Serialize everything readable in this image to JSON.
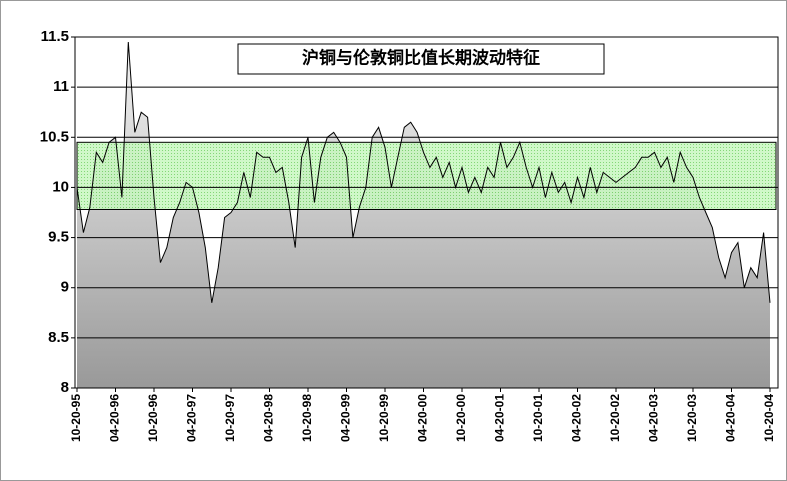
{
  "chart_data": {
    "type": "area",
    "title": "沪铜与伦敦铜比值长期波动特征",
    "categories": [
      "10-20-95",
      null,
      null,
      null,
      null,
      null,
      "04-20-96",
      null,
      null,
      null,
      null,
      null,
      "10-20-96",
      null,
      null,
      null,
      null,
      null,
      "04-20-97",
      null,
      null,
      null,
      null,
      null,
      "10-20-97",
      null,
      null,
      null,
      null,
      null,
      "04-20-98",
      null,
      null,
      null,
      null,
      null,
      "10-20-98",
      null,
      null,
      null,
      null,
      null,
      "04-20-99",
      null,
      null,
      null,
      null,
      null,
      "10-20-99",
      null,
      null,
      null,
      null,
      null,
      "04-20-00",
      null,
      null,
      null,
      null,
      null,
      "10-20-00",
      null,
      null,
      null,
      null,
      null,
      "04-20-01",
      null,
      null,
      null,
      null,
      null,
      "10-20-01",
      null,
      null,
      null,
      null,
      null,
      "04-20-02",
      null,
      null,
      null,
      null,
      null,
      "10-20-02",
      null,
      null,
      null,
      null,
      null,
      "04-20-03",
      null,
      null,
      null,
      null,
      null,
      "10-20-03",
      null,
      null,
      null,
      null,
      null,
      "04-20-04",
      null,
      null,
      null,
      null,
      null,
      "10-20-04"
    ],
    "values": [
      10.0,
      9.55,
      9.8,
      10.35,
      10.25,
      10.45,
      10.5,
      9.9,
      11.45,
      10.55,
      10.75,
      10.7,
      9.9,
      9.25,
      9.4,
      9.7,
      9.85,
      10.05,
      10.0,
      9.75,
      9.4,
      8.85,
      9.2,
      9.7,
      9.75,
      9.85,
      10.15,
      9.9,
      10.35,
      10.3,
      10.3,
      10.15,
      10.2,
      9.85,
      9.4,
      10.3,
      10.5,
      9.85,
      10.3,
      10.5,
      10.55,
      10.45,
      10.3,
      9.5,
      9.8,
      10.0,
      10.5,
      10.6,
      10.4,
      10.0,
      10.3,
      10.6,
      10.65,
      10.55,
      10.35,
      10.2,
      10.3,
      10.1,
      10.25,
      10.0,
      10.2,
      9.95,
      10.1,
      9.95,
      10.2,
      10.1,
      10.45,
      10.2,
      10.3,
      10.45,
      10.2,
      10.0,
      10.2,
      9.9,
      10.15,
      9.95,
      10.05,
      9.85,
      10.1,
      9.9,
      10.2,
      9.95,
      10.15,
      10.1,
      10.05,
      10.1,
      10.15,
      10.2,
      10.3,
      10.3,
      10.35,
      10.2,
      10.3,
      10.05,
      10.35,
      10.2,
      10.1,
      9.9,
      9.75,
      9.6,
      9.3,
      9.1,
      9.35,
      9.45,
      9.0,
      9.2,
      9.1,
      9.55,
      8.85
    ],
    "band": [
      9.78,
      10.45
    ],
    "band_color": "#aef0a0",
    "color": "#000000",
    "ylim": [
      8,
      11.5
    ],
    "yticks": [
      8,
      8.5,
      9,
      9.5,
      10,
      10.5,
      11,
      11.5
    ],
    "grid": true
  }
}
